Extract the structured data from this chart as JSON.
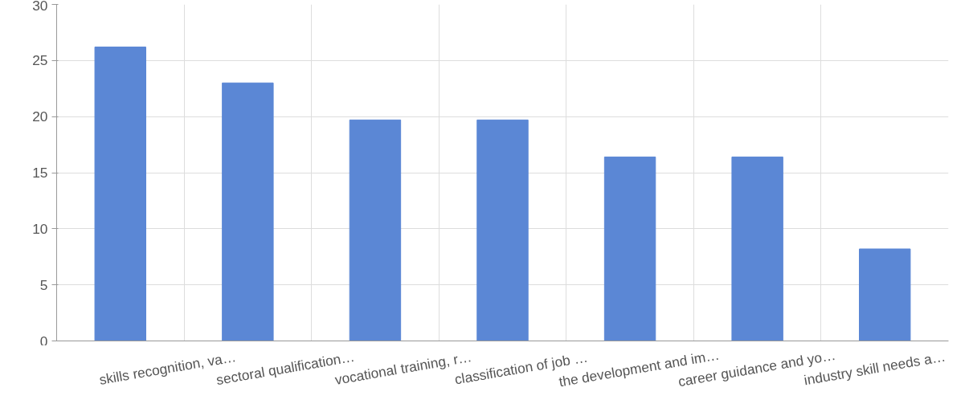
{
  "chart_data": {
    "type": "bar",
    "categories": [
      "skills recognition, va…",
      "sectoral qualification…",
      "vocational training, r…",
      "classification of job …",
      "the development and im…",
      "career guidance and yo…",
      "industry skill needs a…"
    ],
    "values": [
      26.2,
      23.0,
      19.7,
      19.7,
      16.4,
      16.4,
      8.2
    ],
    "color": "#5b87d5",
    "ylim": [
      0,
      30
    ],
    "yticks": [
      0,
      5,
      10,
      15,
      20,
      25,
      30
    ],
    "grid": true
  }
}
